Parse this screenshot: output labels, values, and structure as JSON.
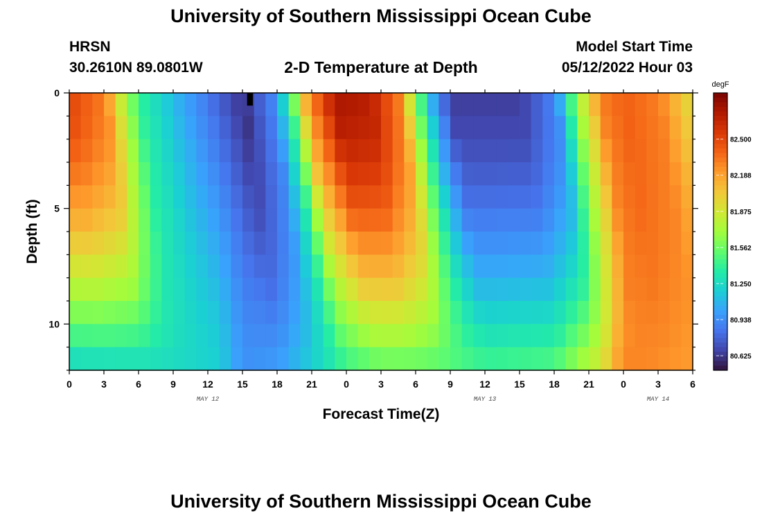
{
  "page": {
    "title": "University of Southern Mississippi Ocean Cube",
    "footer_title": "University of Southern Mississippi Ocean Cube",
    "station_name": "HRSN",
    "station_coords": "30.2610N  89.0801W",
    "model_start_label": "Model Start Time",
    "model_start_value": "05/12/2022 Hour 03"
  },
  "chart_data": {
    "type": "heatmap",
    "title": "2-D Temperature at Depth",
    "xlabel": "Forecast Time(Z)",
    "ylabel": "Depth (ft)",
    "x_range_hours": [
      0,
      54
    ],
    "y_range_ft": [
      0,
      12
    ],
    "x_tick_labels": [
      "0",
      "3",
      "6",
      "9",
      "12",
      "15",
      "18",
      "21",
      "0",
      "3",
      "6",
      "9",
      "12",
      "15",
      "18",
      "21",
      "0",
      "3",
      "6"
    ],
    "y_tick_labels": [
      "0",
      "5",
      "10"
    ],
    "date_labels": [
      {
        "text": "MAY 12",
        "hour": 12
      },
      {
        "text": "MAY 13",
        "hour": 36
      },
      {
        "text": "MAY 14",
        "hour": 51
      }
    ],
    "colorbar": {
      "unit": "degF",
      "min": 80.5,
      "max": 82.9,
      "tick_labels": [
        "82.500",
        "82.188",
        "81.875",
        "81.562",
        "81.250",
        "80.938",
        "80.625"
      ],
      "tick_values": [
        82.5,
        82.188,
        81.875,
        81.562,
        81.25,
        80.938,
        80.625
      ]
    },
    "surface_profile": [
      {
        "hour": 0,
        "temp": 82.5
      },
      {
        "hour": 3,
        "temp": 82.3
      },
      {
        "hour": 4.5,
        "temp": 81.8
      },
      {
        "hour": 6,
        "temp": 81.4
      },
      {
        "hour": 9,
        "temp": 81.1
      },
      {
        "hour": 12,
        "temp": 80.85
      },
      {
        "hour": 15,
        "temp": 80.6
      },
      {
        "hour": 17.5,
        "temp": 80.9
      },
      {
        "hour": 19,
        "temp": 81.4
      },
      {
        "hour": 20.5,
        "temp": 82.2
      },
      {
        "hour": 23,
        "temp": 82.75
      },
      {
        "hour": 26,
        "temp": 82.7
      },
      {
        "hour": 28.5,
        "temp": 82.3
      },
      {
        "hour": 30,
        "temp": 81.6
      },
      {
        "hour": 31.5,
        "temp": 81.0
      },
      {
        "hour": 33,
        "temp": 80.65
      },
      {
        "hour": 39,
        "temp": 80.65
      },
      {
        "hour": 42,
        "temp": 80.9
      },
      {
        "hour": 44,
        "temp": 81.7
      },
      {
        "hour": 46,
        "temp": 82.3
      },
      {
        "hour": 48,
        "temp": 82.4
      },
      {
        "hour": 51,
        "temp": 82.3
      },
      {
        "hour": 54,
        "temp": 81.9
      }
    ],
    "bottom_profile": [
      {
        "hour": 0,
        "temp": 81.2
      },
      {
        "hour": 9,
        "temp": 81.25
      },
      {
        "hour": 13,
        "temp": 81.2
      },
      {
        "hour": 15,
        "temp": 80.95
      },
      {
        "hour": 18,
        "temp": 81.0
      },
      {
        "hour": 21,
        "temp": 81.2
      },
      {
        "hour": 24,
        "temp": 81.4
      },
      {
        "hour": 27,
        "temp": 81.5
      },
      {
        "hour": 30,
        "temp": 81.5
      },
      {
        "hour": 36,
        "temp": 81.45
      },
      {
        "hour": 42,
        "temp": 81.5
      },
      {
        "hour": 46,
        "temp": 81.9
      },
      {
        "hour": 48,
        "temp": 82.3
      },
      {
        "hour": 54,
        "temp": 82.2
      }
    ]
  },
  "colors": {
    "colormap": [
      "#30123b",
      "#4145ab",
      "#4675ed",
      "#39a2fc",
      "#1bcfd4",
      "#24eca6",
      "#61fc6c",
      "#a4fc3b",
      "#d1e834",
      "#f3c63a",
      "#fe9b2d",
      "#f36315",
      "#d93806",
      "#b11901",
      "#7a0402"
    ],
    "missing_cell": "#000000",
    "axis": "#000000",
    "text": "#000000"
  }
}
